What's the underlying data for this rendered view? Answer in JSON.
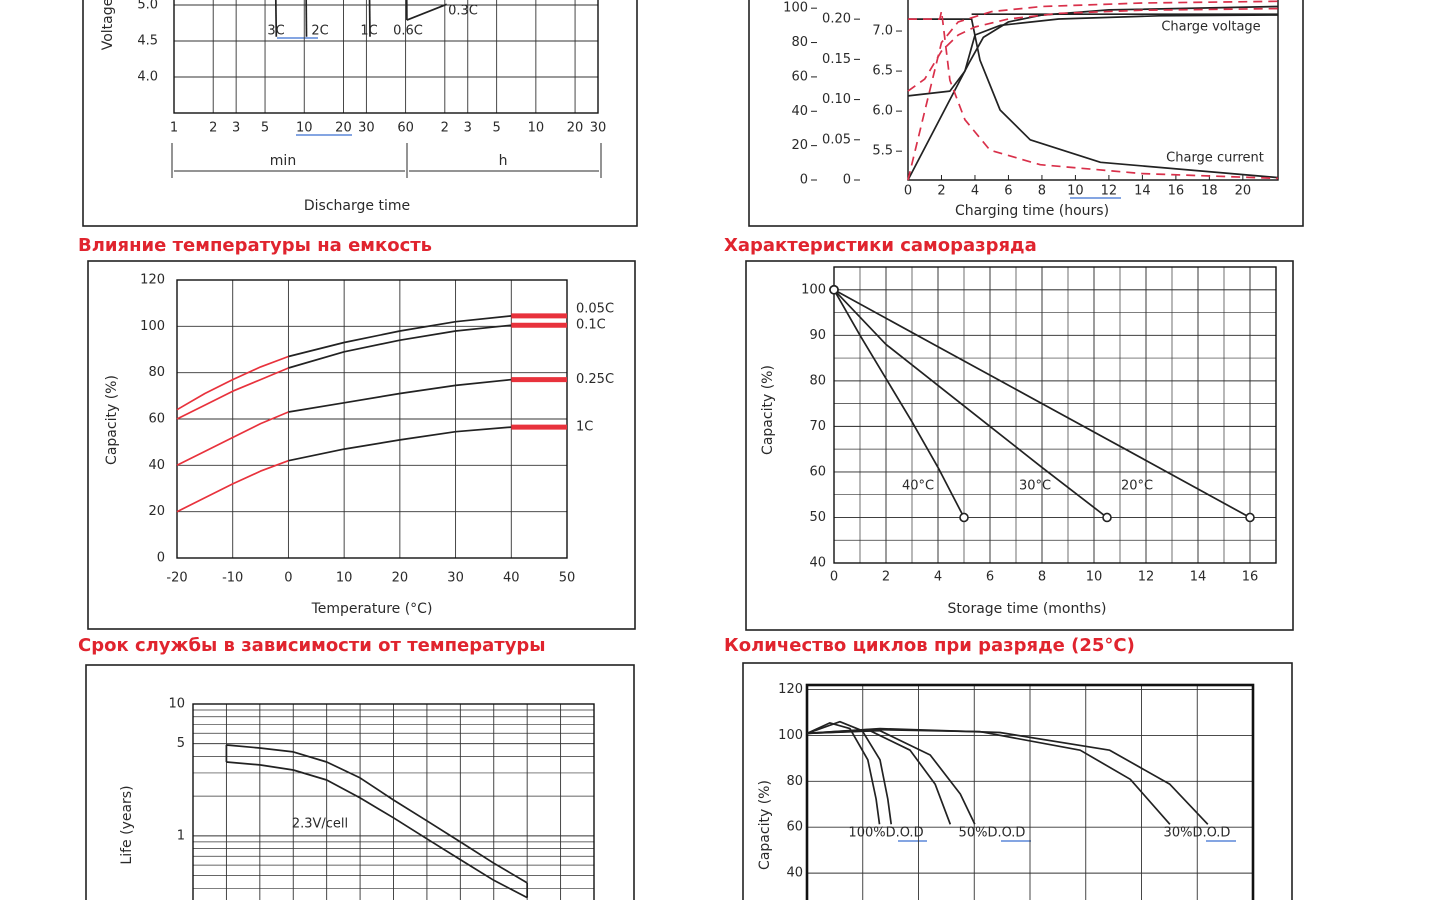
{
  "panels": [
    {
      "ylabel": "Voltage",
      "xlabel": "Discharge time",
      "xlog": true,
      "grid": true,
      "xlim": [
        1,
        1800
      ],
      "ylim": [
        3.5,
        5.5
      ],
      "xticks": [
        1,
        2,
        3,
        5,
        10,
        20,
        30,
        60,
        {
          "value": 120,
          "label": "2"
        },
        {
          "value": 180,
          "label": "3"
        },
        {
          "value": 300,
          "label": "5"
        },
        {
          "value": 600,
          "label": "10"
        },
        {
          "value": 1200,
          "label": "20"
        },
        {
          "value": 1800,
          "label": "30"
        }
      ],
      "yticks": [
        {
          "value": 4,
          "label": "4.0"
        },
        4.5,
        {
          "value": 5,
          "label": "5.0"
        }
      ],
      "xgroups": [
        "min",
        "h"
      ],
      "series": [
        {
          "name": "3C",
          "color": "#222222",
          "x": [
            6,
            6.1
          ],
          "y": [
            5.5,
            4.56
          ]
        },
        {
          "name": "2C",
          "color": "#222222",
          "x": [
            10.3,
            10.4
          ],
          "y": [
            5.5,
            4.56
          ]
        },
        {
          "name": "1C",
          "color": "#222222",
          "x": [
            31.5,
            32
          ],
          "y": [
            5.5,
            4.56
          ]
        },
        {
          "name": "0.6C",
          "color": "#222222",
          "x": [
            61,
            61.4
          ],
          "y": [
            5.5,
            4.79
          ]
        },
        {
          "name": "0.3C",
          "color": "#222222",
          "x": [
            61.4,
            124
          ],
          "y": [
            4.79,
            5.01
          ]
        }
      ]
    },
    {
      "xlabel": "Charging time (hours)",
      "grid": false,
      "xlim": [
        0,
        22.1
      ],
      "xticks": [
        0,
        2,
        4,
        6,
        8,
        10,
        12,
        14,
        16,
        18,
        20
      ],
      "ylim": [
        0,
        110
      ],
      "yticks": [
        0,
        20,
        40,
        60,
        80,
        100
      ],
      "y2lim": [
        0,
        0.235
      ],
      "y2ticks": [
        0,
        0.05,
        {
          "value": 0.1,
          "label": "0.10"
        },
        0.15,
        {
          "value": 0.2,
          "label": "0.20"
        }
      ],
      "y3lim": [
        5.14,
        7.5
      ],
      "y3ticks": [
        5.5,
        {
          "value": 6,
          "label": "6.0"
        },
        6.5,
        {
          "value": 7,
          "label": "7.0"
        }
      ],
      "annotations": [
        "Charge voltage",
        "Charge current"
      ],
      "series": [
        {
          "color": "#222222",
          "axis": "y",
          "x": [
            0,
            3.7,
            4.5,
            6,
            8,
            12,
            22.1
          ],
          "y": [
            0,
            69,
            83,
            92,
            96,
            99,
            101
          ]
        },
        {
          "color": "#222222",
          "axis": "y3",
          "x": [
            0,
            2.5,
            3.4,
            4,
            5.5,
            9,
            15,
            22.1
          ],
          "y": [
            6.19,
            6.25,
            6.5,
            6.95,
            7.07,
            7.15,
            7.19,
            7.2
          ]
        },
        {
          "color": "#222222",
          "axis": "y3",
          "x": [
            3.8,
            22.1
          ],
          "y": [
            7.21,
            7.21
          ]
        },
        {
          "color": "#222222",
          "axis": "y2",
          "x": [
            0,
            3.8,
            4.3,
            5.5,
            7.3,
            11.5,
            22.1
          ],
          "y": [
            0.2,
            0.2,
            0.149,
            0.087,
            0.05,
            0.022,
            0.003
          ]
        },
        {
          "color": "#d9304a",
          "dash": true,
          "axis": "y2",
          "x": [
            0,
            1.9,
            2,
            2.5,
            3.4,
            4.9,
            7.9,
            14,
            22.1
          ],
          "y": [
            0.2,
            0.2,
            0.21,
            0.124,
            0.075,
            0.037,
            0.019,
            0.008,
            0.002
          ]
        },
        {
          "color": "#d9304a",
          "dash": true,
          "axis": "y3",
          "x": [
            0,
            1,
            2,
            3,
            4,
            6,
            9,
            14,
            22.1
          ],
          "y": [
            6.25,
            6.4,
            6.75,
            6.95,
            7.05,
            7.15,
            7.22,
            7.26,
            7.28
          ]
        },
        {
          "color": "#d9304a",
          "dash": true,
          "axis": "y",
          "x": [
            0,
            1,
            2,
            3,
            5,
            8,
            14,
            22.1
          ],
          "y": [
            0,
            40,
            80,
            92,
            98,
            101,
            103,
            104
          ]
        }
      ]
    },
    {
      "title": "Влияние температуры на емкость",
      "xlabel": "Temperature (°C)",
      "ylabel": "Capacity (%)",
      "grid": true,
      "xlim": [
        -20,
        50
      ],
      "xticks": [
        -20,
        -10,
        0,
        10,
        20,
        30,
        40,
        50
      ],
      "ylim": [
        0,
        120
      ],
      "yticks": [
        0,
        20,
        40,
        60,
        80,
        100,
        120
      ],
      "series": [
        {
          "color": "#e8323c",
          "x": [
            -20,
            -15,
            -10,
            -5,
            0
          ],
          "y": [
            64,
            71,
            77,
            82.5,
            87
          ]
        },
        {
          "color": "#e8323c",
          "x": [
            -20,
            -15,
            -10,
            -5,
            0
          ],
          "y": [
            60,
            66,
            72,
            77,
            82
          ]
        },
        {
          "color": "#e8323c",
          "x": [
            -20,
            -15,
            -10,
            -5,
            0
          ],
          "y": [
            40,
            46,
            52,
            58,
            63
          ]
        },
        {
          "color": "#e8323c",
          "x": [
            -20,
            -15,
            -10,
            -5,
            0
          ],
          "y": [
            20,
            26,
            32,
            37.5,
            42
          ]
        },
        {
          "color": "#222222",
          "x": [
            0,
            10,
            20,
            30,
            40
          ],
          "y": [
            87,
            93,
            98,
            102,
            104.5
          ]
        },
        {
          "color": "#222222",
          "x": [
            0,
            10,
            20,
            30,
            40
          ],
          "y": [
            82,
            89,
            94,
            98,
            100.5
          ]
        },
        {
          "color": "#222222",
          "x": [
            0,
            10,
            20,
            30,
            40
          ],
          "y": [
            63,
            67,
            71,
            74.5,
            77
          ]
        },
        {
          "color": "#222222",
          "x": [
            0,
            10,
            20,
            30,
            40
          ],
          "y": [
            42,
            47,
            51,
            54.5,
            56.5
          ]
        },
        {
          "name": "0.05C",
          "color": "#e8323c",
          "style": "bar",
          "x": [
            40,
            50
          ],
          "y": [
            104.5,
            104.5
          ]
        },
        {
          "name": "0.1C",
          "color": "#e8323c",
          "style": "bar",
          "x": [
            40,
            50
          ],
          "y": [
            100.5,
            100.5
          ]
        },
        {
          "name": "0.25C",
          "color": "#e8323c",
          "style": "bar",
          "x": [
            40,
            50
          ],
          "y": [
            77,
            77
          ]
        },
        {
          "name": "1C",
          "color": "#e8323c",
          "style": "bar",
          "x": [
            40,
            50
          ],
          "y": [
            56.5,
            56.5
          ]
        }
      ]
    },
    {
      "title": "Характеристики саморазряда",
      "xlabel": "Storage time (months)",
      "ylabel": "Capacity (%)",
      "grid": true,
      "minor_step": [
        1,
        5
      ],
      "xlim": [
        0,
        17
      ],
      "xticks": [
        0,
        2,
        4,
        6,
        8,
        10,
        12,
        14,
        16
      ],
      "ylim": [
        40,
        105
      ],
      "yticks": [
        40,
        50,
        60,
        70,
        80,
        90,
        100
      ],
      "series": [
        {
          "name": "40°C",
          "color": "#222222",
          "marker": "o",
          "x": [
            0,
            1,
            2,
            3,
            4,
            5
          ],
          "y": [
            100,
            90,
            80.5,
            71,
            61,
            50
          ]
        },
        {
          "name": "30°C",
          "color": "#222222",
          "marker": "o",
          "x": [
            0,
            2,
            4,
            6,
            8,
            10.5
          ],
          "y": [
            100,
            88,
            79,
            70,
            61,
            50
          ]
        },
        {
          "name": "20°C",
          "color": "#222222",
          "marker": "o",
          "x": [
            0,
            4,
            8,
            12,
            16
          ],
          "y": [
            100,
            87.5,
            75,
            62.5,
            50
          ]
        }
      ]
    },
    {
      "title": "Срок службы в зависимости от температуры",
      "ylabel": "Life (years)",
      "ylog": true,
      "grid": true,
      "xlim": [
        0,
        12
      ],
      "ylim": [
        0.2,
        10
      ],
      "yticks": [
        1,
        5,
        10
      ],
      "annotations": [
        "2.3V/cell"
      ],
      "series": [
        {
          "color": "#222222",
          "x": [
            1,
            2,
            3,
            4,
            5,
            6,
            7,
            8,
            9,
            10
          ],
          "y": [
            4.89,
            4.64,
            4.33,
            3.63,
            2.75,
            1.87,
            1.3,
            0.9,
            0.62,
            0.44
          ]
        },
        {
          "color": "#222222",
          "x": [
            1,
            2,
            3,
            4,
            5,
            6,
            7,
            8,
            9,
            10
          ],
          "y": [
            3.63,
            3.45,
            3.16,
            2.65,
            1.94,
            1.37,
            0.95,
            0.66,
            0.46,
            0.34
          ]
        }
      ]
    },
    {
      "title": "Количество циклов при разряде (25°C)",
      "ylabel": "Capacity (%)",
      "grid": true,
      "xlim": [
        0,
        8
      ],
      "ylim": [
        20,
        122
      ],
      "yticks": [
        40,
        60,
        80,
        100,
        120
      ],
      "annotations": [
        "100%D.O.D",
        "50%D.O.D",
        "30%D.O.D"
      ],
      "series": [
        {
          "color": "#222222",
          "x": [
            0,
            0.41,
            0.77,
            1.09,
            1.24,
            1.3
          ],
          "y": [
            100.9,
            105.5,
            103,
            89.4,
            72.3,
            61.3
          ]
        },
        {
          "color": "#222222",
          "x": [
            0,
            0.59,
            0.99,
            1.31,
            1.45,
            1.51
          ],
          "y": [
            100.9,
            106,
            102.1,
            89.4,
            72.3,
            61.3
          ]
        },
        {
          "color": "#222222",
          "x": [
            0,
            1.13,
            1.85,
            2.3,
            2.57
          ],
          "y": [
            100.9,
            102.1,
            93.6,
            78.7,
            61.3
          ]
        },
        {
          "color": "#222222",
          "x": [
            0,
            1.31,
            2.21,
            2.75,
            3.01
          ],
          "y": [
            100.9,
            102.1,
            91.5,
            74.5,
            61.3
          ]
        },
        {
          "color": "#222222",
          "x": [
            0,
            1.13,
            3.1,
            4.9,
            5.8,
            6.51
          ],
          "y": [
            100.9,
            102.6,
            101.7,
            93.6,
            80.9,
            61.3
          ]
        },
        {
          "color": "#222222",
          "x": [
            0,
            1.31,
            3.46,
            5.43,
            6.51,
            7.19
          ],
          "y": [
            100.9,
            103,
            101.3,
            93.6,
            78.7,
            61.3
          ]
        }
      ]
    }
  ]
}
